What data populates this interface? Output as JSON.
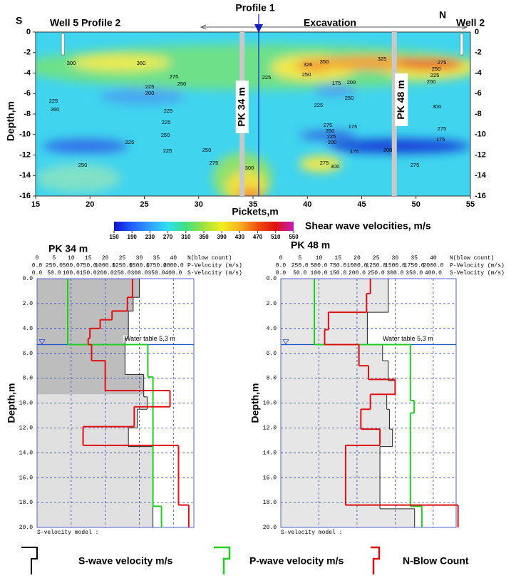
{
  "chart_data": [
    {
      "type": "contour",
      "xlabel": "Pickets,m",
      "ylabel": "Depth,m",
      "xlim": [
        15,
        55
      ],
      "ylim": [
        -16,
        0
      ],
      "xticks": [
        15,
        20,
        25,
        30,
        35,
        40,
        45,
        50,
        55
      ],
      "yticks": [
        0,
        -2,
        -4,
        -6,
        -8,
        -10,
        -12,
        -14,
        -16
      ],
      "annotations": {
        "south": "S",
        "north": "N",
        "left_well": "Well 5 Profile 2",
        "right_well": "Well 2",
        "profile": "Profile 1",
        "excavation": "Excavation"
      },
      "wells": [
        17.5,
        54.2
      ],
      "pickets": [
        {
          "x": 34,
          "label": "PK 34 m"
        },
        {
          "x": 48,
          "label": "PK 48 m"
        }
      ],
      "contour_labels": [
        300,
        360,
        275,
        250,
        225,
        200,
        225,
        260,
        225,
        225,
        250,
        225,
        225,
        250,
        250,
        275,
        300,
        225,
        326,
        350,
        325,
        250,
        175,
        200,
        250,
        225,
        275,
        250,
        225,
        200,
        175,
        200,
        275,
        300,
        175,
        275,
        300,
        275,
        250,
        225,
        200,
        275,
        175
      ],
      "colorbar": {
        "label": "Shear wave velocities, m/s",
        "ticks": [
          150,
          190,
          230,
          270,
          310,
          350,
          390,
          430,
          470,
          510,
          550
        ],
        "colors": [
          "#1010d0",
          "#2060ff",
          "#30a0ff",
          "#30e0f0",
          "#40e080",
          "#a0e040",
          "#f0f020",
          "#f8b020",
          "#f05010",
          "#e01010",
          "#c020c0"
        ]
      }
    },
    {
      "type": "step-profile",
      "title": "PK 34 m",
      "ylabel": "Depth,m",
      "footer": "S-velocity model :",
      "ylim": [
        0,
        20
      ],
      "yticks": [
        {
          "value": 0,
          "label": "0.0"
        },
        {
          "value": 2,
          "label": "2.0"
        },
        {
          "value": 4,
          "label": "4.0"
        },
        {
          "value": 6,
          "label": "6.0"
        },
        {
          "value": 8,
          "label": "8.0"
        },
        {
          "value": 10,
          "label": "10.0"
        },
        {
          "value": 12,
          "label": "12.0"
        },
        {
          "value": 14,
          "label": "14.0"
        },
        {
          "value": 16,
          "label": "16.0"
        },
        {
          "value": 18,
          "label": "18.0"
        },
        {
          "value": 20,
          "label": "20.0"
        }
      ],
      "water_table": {
        "depth": 5.3,
        "label": "Water table 5,3 m"
      },
      "shade": {
        "to_depth": 9.3,
        "color": "#bdbdbd"
      },
      "axes": [
        {
          "title": "N(blow count)",
          "xlim": [
            0,
            46
          ],
          "xticks": [
            0,
            5,
            10,
            15,
            20,
            25,
            30,
            35,
            40
          ],
          "series": {
            "color": "#e01010",
            "depths": [
              0,
              1.5,
              2.6,
              3.3,
              4.0,
              4.8,
              5.3,
              6.6,
              9.0,
              10.3,
              11.9,
              13.4,
              18.2,
              20
            ],
            "values": [
              28,
              26.5,
              22,
              18.5,
              15.5,
              15,
              16,
              20,
              39,
              28.5,
              13.5,
              41.5,
              44.5
            ]
          }
        },
        {
          "title": "P-Velocity (m/s)",
          "xlim": [
            0,
            2300
          ],
          "xticks": [
            {
              "value": 0,
              "label": "0.0"
            },
            {
              "value": 250,
              "label": "250.0"
            },
            {
              "value": 500,
              "label": "500.0"
            },
            {
              "value": 750,
              "label": "750.0"
            },
            {
              "value": 1000,
              "label": "1000.0"
            },
            {
              "value": 1250,
              "label": "1250.0"
            },
            {
              "value": 1500,
              "label": "1500.0"
            },
            {
              "value": 1750,
              "label": "1750.0"
            },
            {
              "value": 2000,
              "label": "2000.0"
            }
          ],
          "series": {
            "color": "#20d020",
            "depths": [
              0,
              5.3,
              7.9,
              18.3,
              20
            ],
            "values": [
              450,
              1625,
              1700,
              1825
            ]
          }
        },
        {
          "title": "S-Velocity (m/s)",
          "xlim": [
            0,
            460
          ],
          "xticks": [
            {
              "value": 0,
              "label": "0.0"
            },
            {
              "value": 50,
              "label": "50.0"
            },
            {
              "value": 100,
              "label": "100.0"
            },
            {
              "value": 150,
              "label": "150.0"
            },
            {
              "value": 200,
              "label": "200.0"
            },
            {
              "value": 250,
              "label": "250.0"
            },
            {
              "value": 300,
              "label": "300.0"
            },
            {
              "value": 350,
              "label": "350.0"
            },
            {
              "value": 400,
              "label": "400.0"
            }
          ],
          "series": {
            "color": "#202020",
            "fill": "#e0e0e0",
            "depths": [
              0,
              1.5,
              2.6,
              4.8,
              7.7,
              9.5,
              10.5,
              12.0,
              13.5,
              20
            ],
            "values": [
              300,
              282,
              268,
              258,
              313,
              323,
              294,
              268,
              340
            ]
          }
        }
      ]
    },
    {
      "type": "step-profile",
      "title": "PK 48 m",
      "ylabel": "Depth,m",
      "footer": "S-velocity model :",
      "ylim": [
        0,
        20
      ],
      "yticks": [
        {
          "value": 0,
          "label": "0.0"
        },
        {
          "value": 2,
          "label": "2.0"
        },
        {
          "value": 4,
          "label": "4.0"
        },
        {
          "value": 6,
          "label": "6.0"
        },
        {
          "value": 8,
          "label": "8.0"
        },
        {
          "value": 10,
          "label": "10.0"
        },
        {
          "value": 12,
          "label": "12.0"
        },
        {
          "value": 14,
          "label": "14.0"
        },
        {
          "value": 16,
          "label": "16.0"
        },
        {
          "value": 18,
          "label": "18.0"
        },
        {
          "value": 20,
          "label": "20.0"
        }
      ],
      "water_table": {
        "depth": 5.3,
        "label": "Water table 5,3 m"
      },
      "axes": [
        {
          "title": "N(blow count)",
          "xlim": [
            0,
            46
          ],
          "xticks": [
            0,
            5,
            10,
            15,
            20,
            25,
            30,
            35,
            40
          ],
          "series": {
            "color": "#e01010",
            "depths": [
              0,
              1.2,
              2.7,
              4.1,
              5.3,
              7.0,
              8.1,
              9.3,
              10.5,
              12.1,
              13.4,
              18.2,
              20
            ],
            "values": [
              23.5,
              22.5,
              12.5,
              11.5,
              20.5,
              23,
              30,
              23.5,
              21,
              26,
              17,
              46.5
            ]
          }
        },
        {
          "title": "P-Velocity (m/s)",
          "xlim": [
            0,
            2300
          ],
          "xticks": [
            {
              "value": 0,
              "label": "0.0"
            },
            {
              "value": 250,
              "label": "250.0"
            },
            {
              "value": 500,
              "label": "500.0"
            },
            {
              "value": 750,
              "label": "750.0"
            },
            {
              "value": 1000,
              "label": "1000.0"
            },
            {
              "value": 1250,
              "label": "1250.0"
            },
            {
              "value": 1500,
              "label": "1500.0"
            },
            {
              "value": 1750,
              "label": "1750.0"
            },
            {
              "value": 2000,
              "label": "2000.0"
            }
          ],
          "series": {
            "color": "#20d020",
            "depths": [
              0,
              5.3,
              9.8,
              10.8,
              18.3,
              20
            ],
            "values": [
              440,
              1700,
              1750,
              1700,
              1850
            ]
          }
        },
        {
          "title": "S-Velocity (m/s)",
          "xlim": [
            0,
            460
          ],
          "xticks": [
            {
              "value": 0,
              "label": "0.0"
            },
            {
              "value": 50,
              "label": "50.0"
            },
            {
              "value": 100,
              "label": "100.0"
            },
            {
              "value": 150,
              "label": "150.0"
            },
            {
              "value": 200,
              "label": "200.0"
            },
            {
              "value": 250,
              "label": "250.0"
            },
            {
              "value": 300,
              "label": "300.0"
            },
            {
              "value": 350,
              "label": "350.0"
            },
            {
              "value": 400,
              "label": "400.0"
            }
          ],
          "series": {
            "color": "#202020",
            "fill": "#e6e6e6",
            "depths": [
              0,
              2.7,
              5.3,
              6.6,
              8.2,
              9.3,
              10.5,
              12.1,
              13.5,
              18.5,
              20
            ],
            "values": [
              282,
              227,
              267,
              282,
              300,
              278,
              285,
              293,
              260,
              351
            ]
          }
        }
      ]
    }
  ],
  "legend": [
    {
      "name": "S-wave velocity m/s",
      "color": "#000000"
    },
    {
      "name": "P-wave velocity m/s",
      "color": "#20d020"
    },
    {
      "name": "N-Blow Count",
      "color": "#e01010"
    }
  ]
}
